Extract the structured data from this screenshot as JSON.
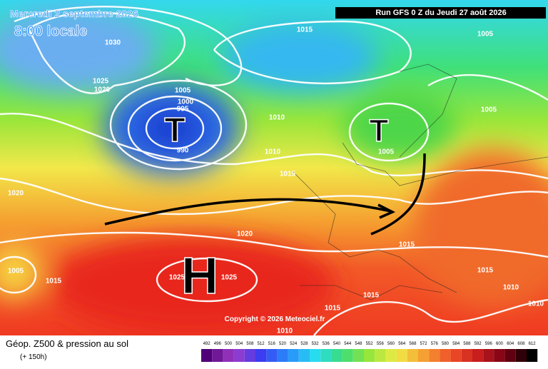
{
  "header": {
    "valid_date": "Mercredi 2 septembre 2026",
    "local_time": "8:00 locale",
    "run": "Run GFS 0 Z du Jeudi 27 août 2026"
  },
  "isobar_labels": [
    1015,
    1005,
    1030,
    1025,
    1020,
    1005,
    1000,
    995,
    990,
    1010,
    1005,
    1010,
    1005,
    1015,
    1020,
    1020,
    1015,
    1005,
    1015,
    1025,
    1025,
    1015,
    1010,
    1015,
    1015,
    1010,
    1010
  ],
  "pressure_centers": [
    "T",
    "T",
    "H"
  ],
  "copyright": "Copyright © 2026 Meteociel.fr",
  "footer": {
    "title": "Géop. Z500 & pression au sol",
    "lead_time": "(+ 150h)"
  },
  "scale": [
    492,
    496,
    500,
    504,
    508,
    512,
    516,
    520,
    524,
    528,
    532,
    536,
    540,
    544,
    548,
    552,
    556,
    560,
    564,
    568,
    572,
    576,
    580,
    584,
    588,
    592,
    596,
    600,
    604,
    608,
    612
  ]
}
